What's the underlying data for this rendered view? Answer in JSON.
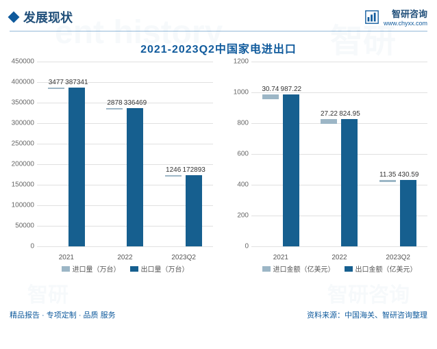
{
  "header": {
    "title": "发展现状",
    "brand_label": "智研咨询",
    "brand_url": "www.chyxx.com",
    "watermark_text_en": "ent history"
  },
  "chart_title": "2021-2023Q2中国家电进出口",
  "left_chart": {
    "type": "bar",
    "categories": [
      "2021",
      "2022",
      "2023Q2"
    ],
    "series": [
      {
        "name": "进口量（万台）",
        "color": "#9cb6c6",
        "values": [
          3477,
          2878,
          1246
        ]
      },
      {
        "name": "出口量（万台）",
        "color": "#165f8f",
        "values": [
          387341,
          336469,
          172893
        ]
      }
    ],
    "ylim": [
      0,
      450000
    ],
    "ytick_step": 50000,
    "grid_color": "#e0e0e0"
  },
  "right_chart": {
    "type": "bar",
    "categories": [
      "2021",
      "2022",
      "2023Q2"
    ],
    "series": [
      {
        "name": "进口金额（亿美元）",
        "color": "#9cb6c6",
        "values": [
          30.74,
          27.22,
          11.35
        ]
      },
      {
        "name": "出口金额（亿美元）",
        "color": "#165f8f",
        "values": [
          987.22,
          824.95,
          430.59
        ]
      }
    ],
    "ylim": [
      0,
      1200
    ],
    "ytick_step": 200,
    "grid_color": "#e0e0e0"
  },
  "footer": {
    "left": "精品报告 · 专项定制 · 品质 服务",
    "right": "资料来源：中国海关、智研咨询整理"
  },
  "watermarks": {
    "wm_text": "智研",
    "wm_logo": "智研咨询"
  }
}
